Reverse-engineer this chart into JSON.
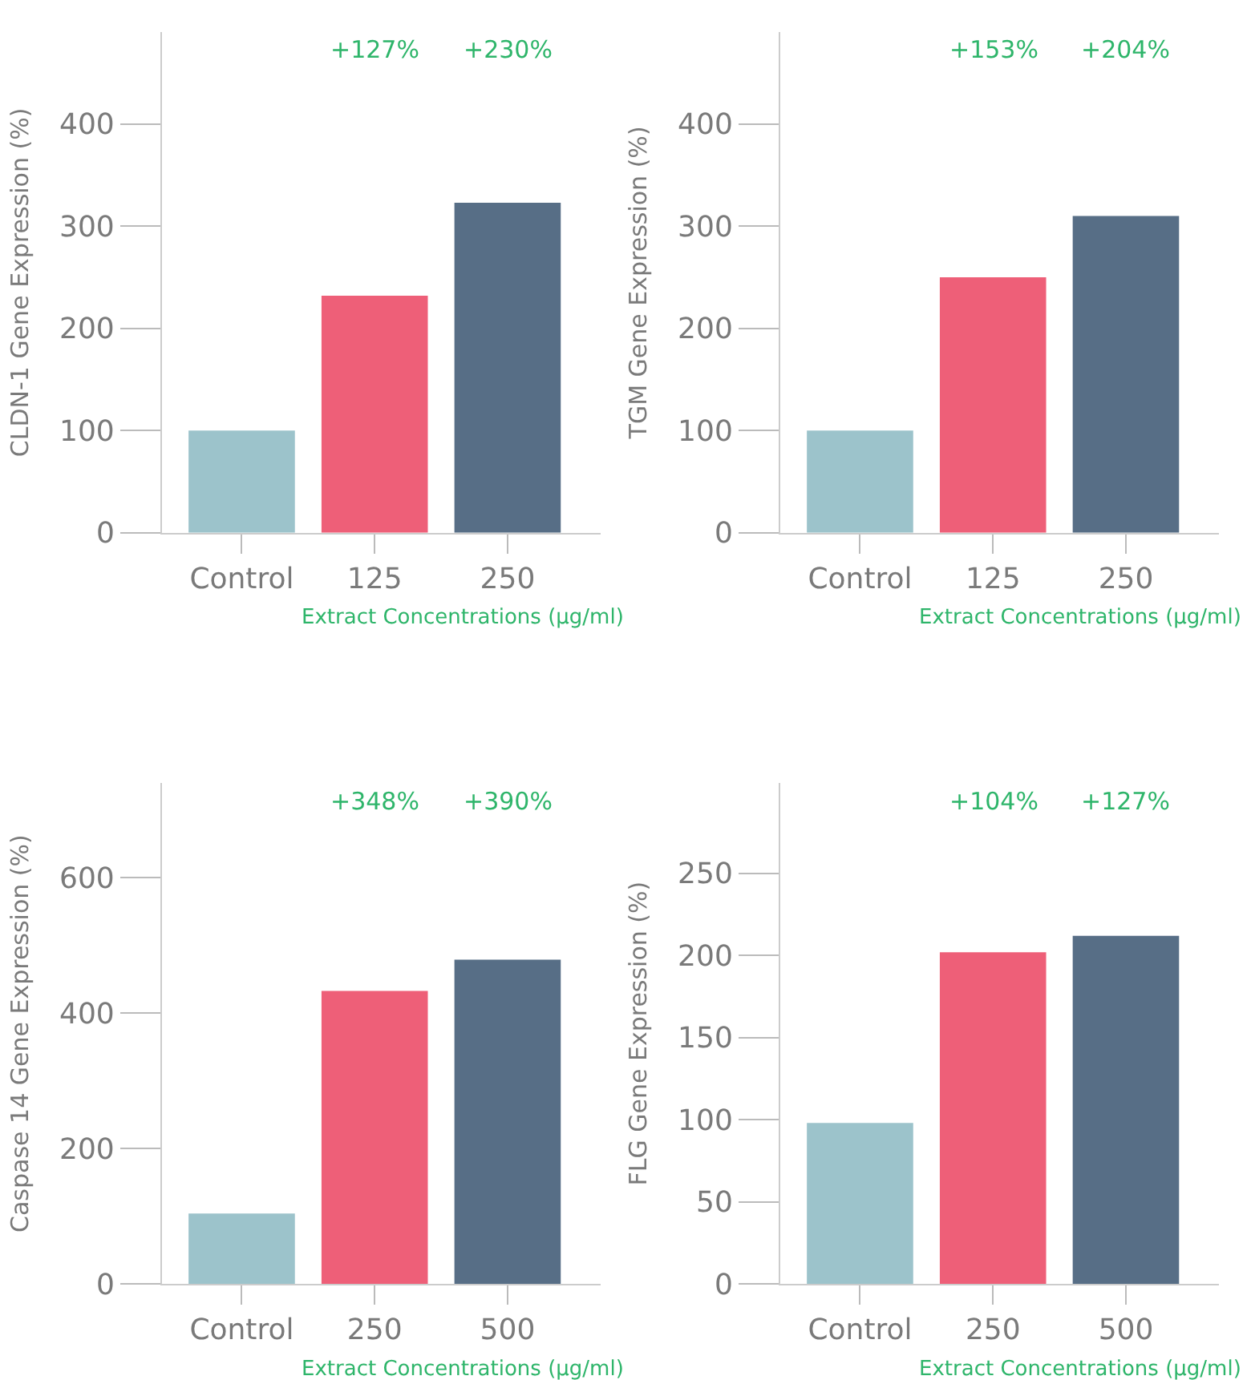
{
  "chart_data": [
    {
      "type": "bar",
      "categories": [
        "Control",
        "125",
        "250"
      ],
      "values": [
        100,
        232,
        323
      ],
      "colors": [
        "#9cc3cb",
        "#ee5f78",
        "#576e86"
      ],
      "ylabel": "CLDN-1 Gene Expression (%)",
      "ylim": [
        0,
        490
      ],
      "yticks": [
        0,
        100,
        200,
        300,
        400
      ],
      "annotations": [
        "+127%",
        "+230%",
        "Extract Concentrations (µg/ml)"
      ]
    },
    {
      "type": "bar",
      "categories": [
        "Control",
        "125",
        "250"
      ],
      "values": [
        100,
        250,
        310
      ],
      "colors": [
        "#9cc3cb",
        "#ee5f78",
        "#576e86"
      ],
      "ylabel": "TGM Gene Expression (%)",
      "ylim": [
        0,
        490
      ],
      "yticks": [
        0,
        100,
        200,
        300,
        400
      ],
      "annotations": [
        "+153%",
        "+204%",
        "Extract Concentrations (µg/ml)"
      ]
    },
    {
      "type": "bar",
      "categories": [
        "Control",
        "250",
        "500"
      ],
      "values": [
        104,
        433,
        479
      ],
      "colors": [
        "#9cc3cb",
        "#ee5f78",
        "#576e86"
      ],
      "ylabel": "Caspase 14 Gene Expression (%)",
      "ylim": [
        0,
        740
      ],
      "yticks": [
        0,
        200,
        400,
        600
      ],
      "annotations": [
        "+348%",
        "+390%",
        "Extract Concentrations (µg/ml)"
      ]
    },
    {
      "type": "bar",
      "categories": [
        "Control",
        "250",
        "500"
      ],
      "values": [
        98,
        202,
        212
      ],
      "colors": [
        "#9cc3cb",
        "#ee5f78",
        "#576e86"
      ],
      "ylabel": "FLG Gene Expression (%)",
      "ylim": [
        0,
        305
      ],
      "yticks": [
        0,
        50,
        100,
        150,
        200,
        250
      ],
      "annotations": [
        "+104%",
        "+127%",
        "Extract Concentrations (µg/ml)"
      ]
    }
  ]
}
